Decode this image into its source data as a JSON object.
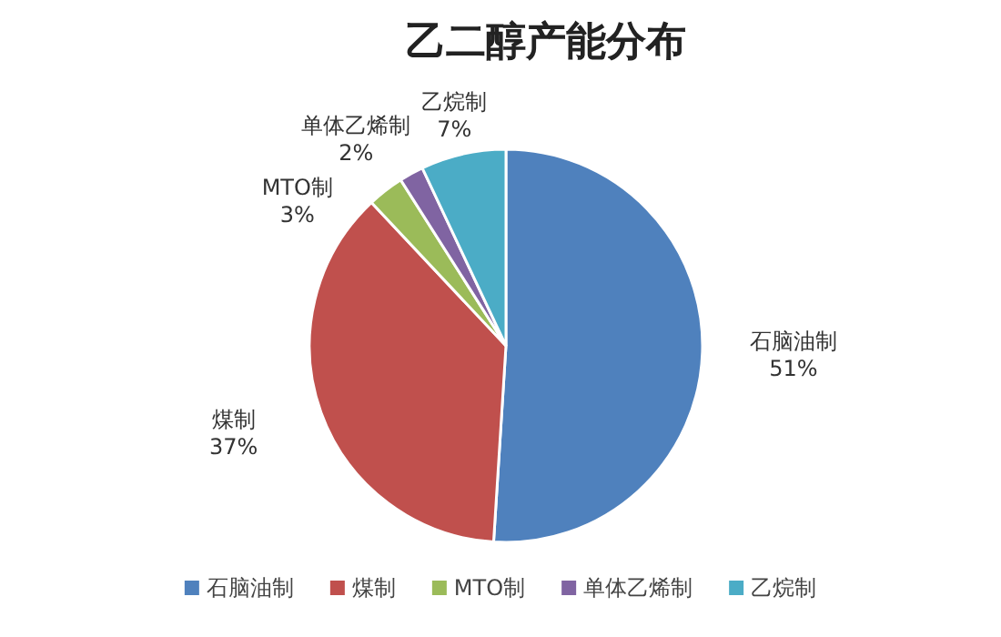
{
  "chart_data": {
    "type": "pie",
    "title": "乙二醇产能分布",
    "categories": [
      "石脑油制",
      "煤制",
      "MTO制",
      "单体乙烯制",
      "乙烷制"
    ],
    "values": [
      51,
      37,
      3,
      2,
      7
    ],
    "value_labels": [
      "51%",
      "37%",
      "3%",
      "2%",
      "7%"
    ],
    "colors": [
      "#4f81bd",
      "#c0504d",
      "#9bbb59",
      "#8064a2",
      "#4bacc6"
    ],
    "legend": "bottom"
  }
}
